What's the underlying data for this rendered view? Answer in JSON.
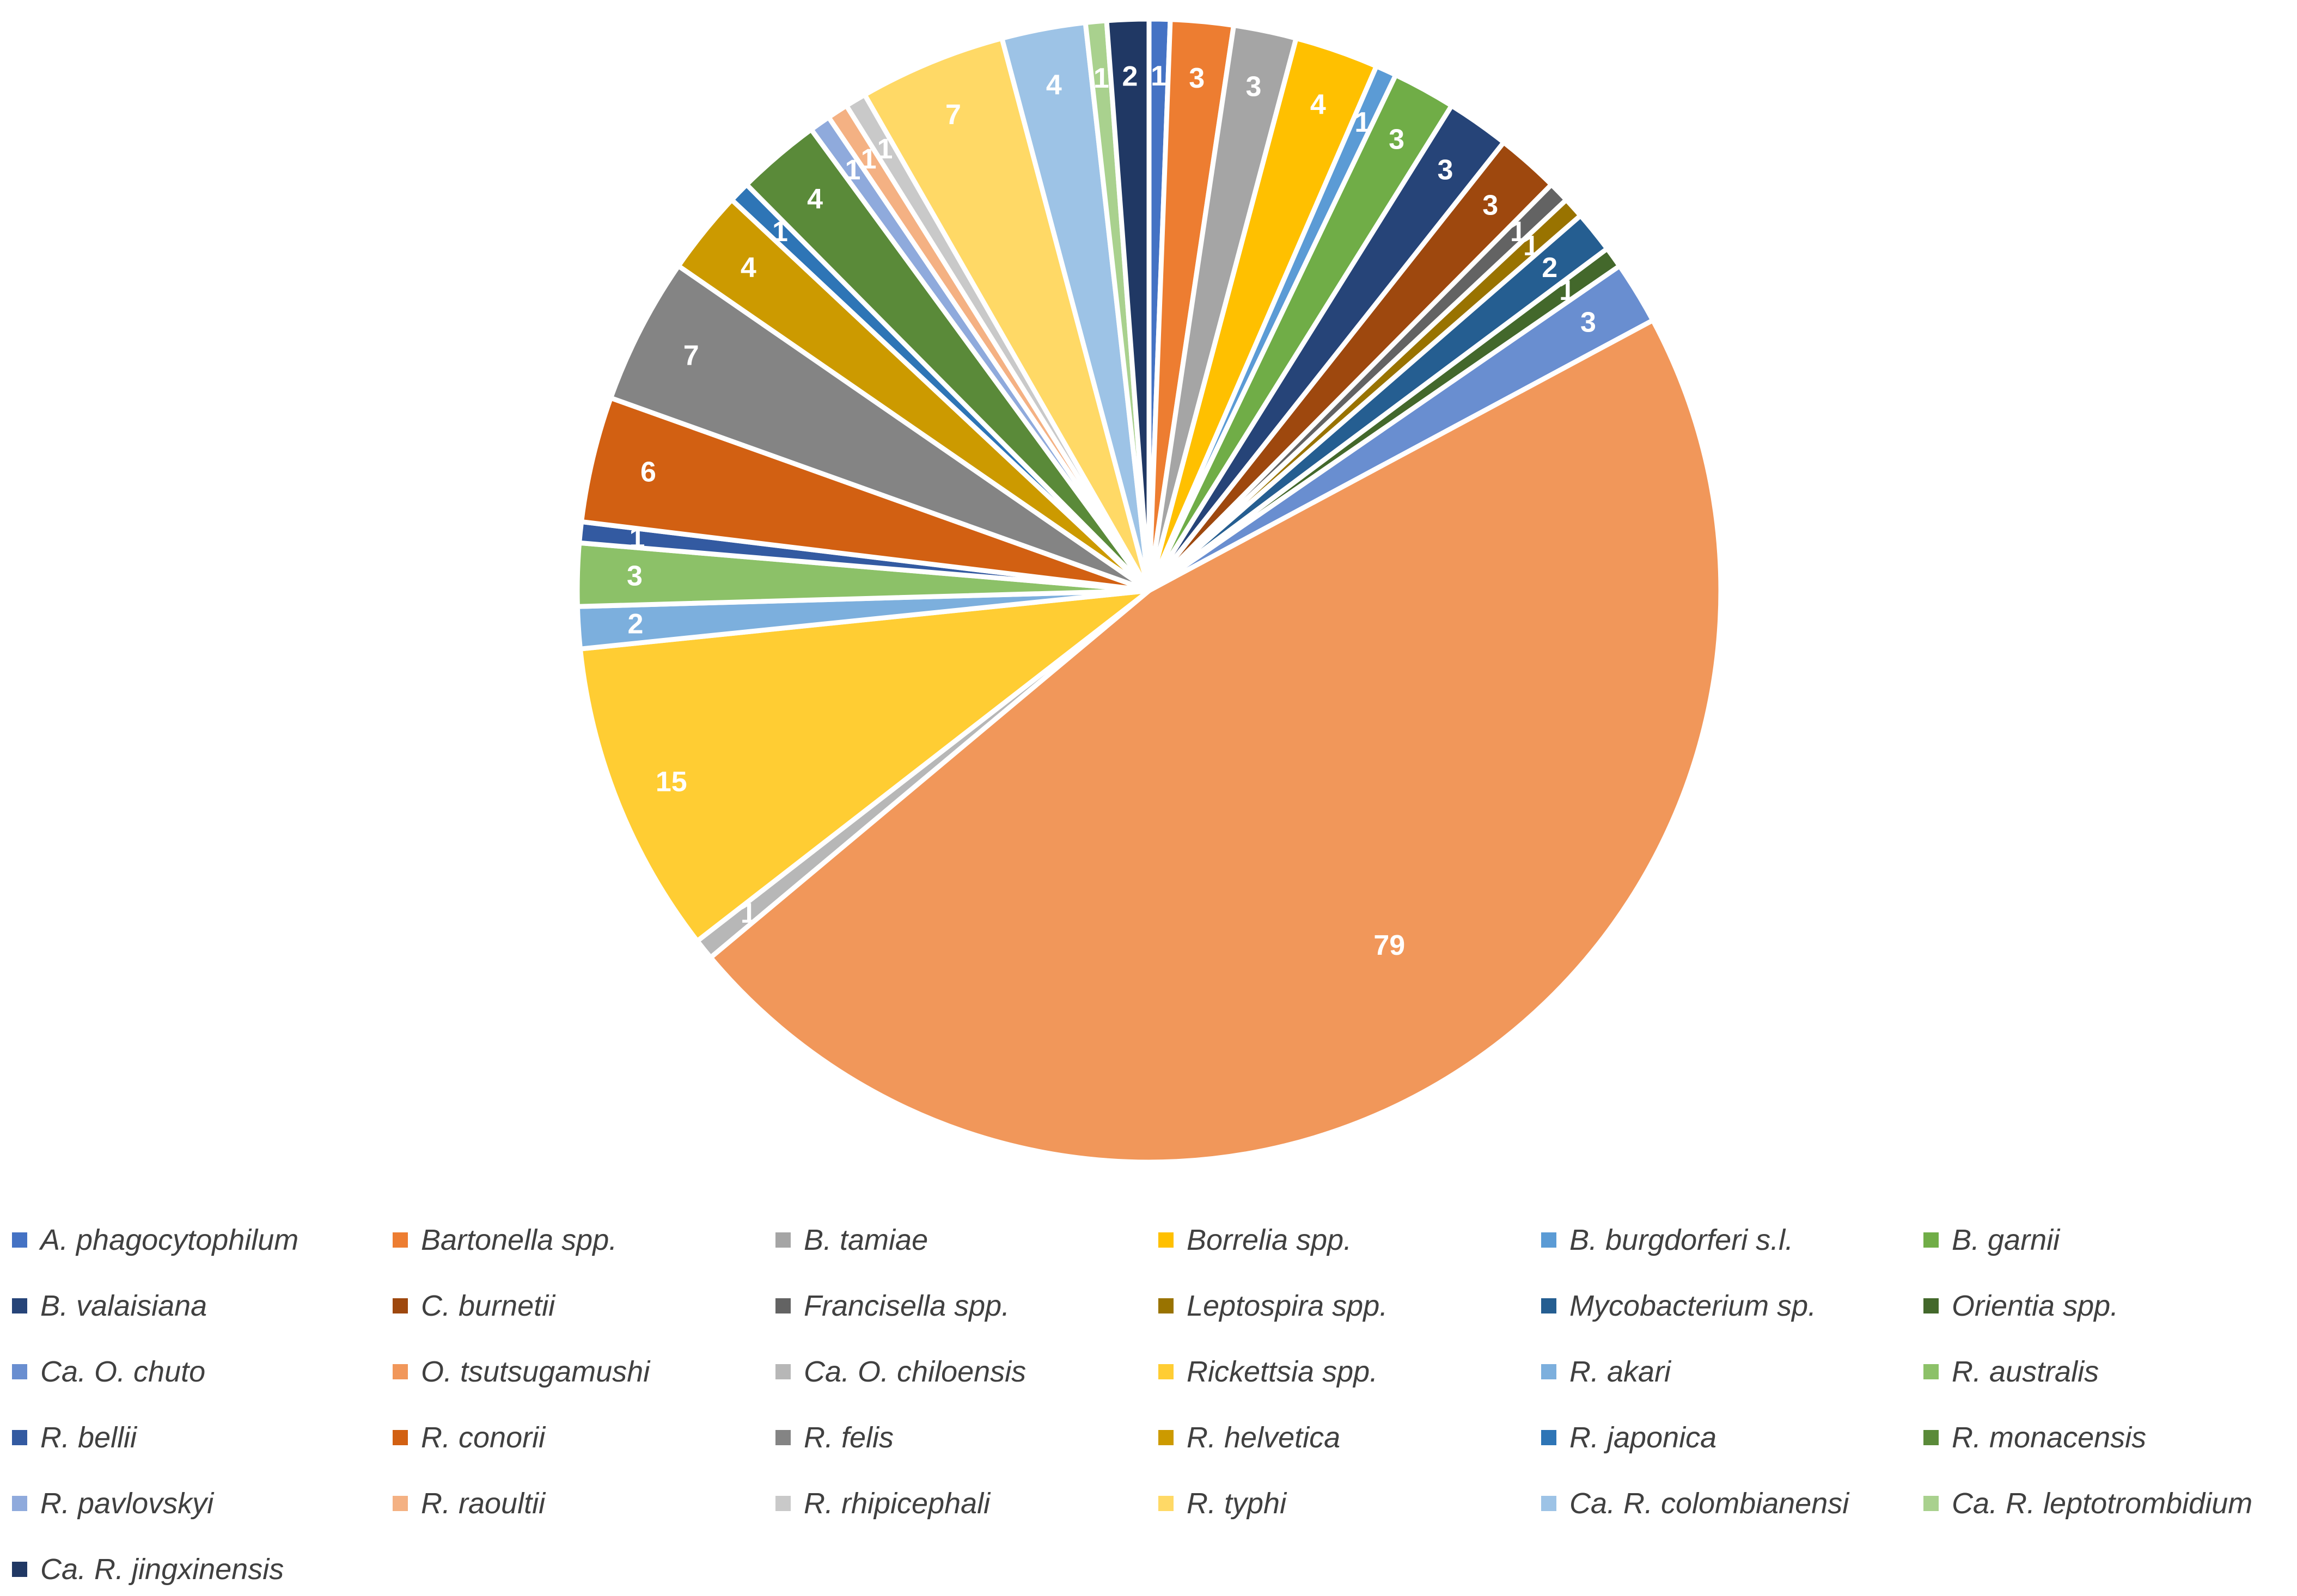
{
  "chart_data": {
    "type": "pie",
    "title": "",
    "start_angle_deg": 0,
    "direction": "clockwise",
    "legend_position": "bottom",
    "slices": [
      {
        "label": "A. phagocytophilum",
        "value": 1,
        "color": "#4472C4"
      },
      {
        "label": "Bartonella spp.",
        "value": 3,
        "color": "#ED7D31"
      },
      {
        "label": "B. tamiae",
        "value": 3,
        "color": "#A5A5A5"
      },
      {
        "label": "Borrelia spp.",
        "value": 4,
        "color": "#FFC000"
      },
      {
        "label": "B. burgdorferi s.l.",
        "value": 1,
        "color": "#5B9BD5"
      },
      {
        "label": "B. garnii",
        "value": 3,
        "color": "#70AD47"
      },
      {
        "label": "B. valaisiana",
        "value": 3,
        "color": "#264478"
      },
      {
        "label": "C. burnetii",
        "value": 3,
        "color": "#9E480E"
      },
      {
        "label": "Francisella spp.",
        "value": 1,
        "color": "#636363"
      },
      {
        "label": "Leptospira spp.",
        "value": 1,
        "color": "#997300"
      },
      {
        "label": "Mycobacterium sp.",
        "value": 2,
        "color": "#255E91"
      },
      {
        "label": "Orientia spp.",
        "value": 1,
        "color": "#43682B"
      },
      {
        "label": "Ca. O. chuto",
        "value": 3,
        "color": "#698ED0"
      },
      {
        "label": "O. tsutsugamushi",
        "value": 79,
        "color": "#F1975A"
      },
      {
        "label": "Ca. O. chiloensis",
        "value": 1,
        "color": "#B7B7B7"
      },
      {
        "label": "Rickettsia spp.",
        "value": 15,
        "color": "#FFCD33"
      },
      {
        "label": "R. akari",
        "value": 2,
        "color": "#7CAFDD"
      },
      {
        "label": "R. australis",
        "value": 3,
        "color": "#8CC168"
      },
      {
        "label": "R. bellii",
        "value": 1,
        "color": "#335AA1"
      },
      {
        "label": "R. conorii",
        "value": 6,
        "color": "#D26012"
      },
      {
        "label": "R. felis",
        "value": 7,
        "color": "#848484"
      },
      {
        "label": "R. helvetica",
        "value": 4,
        "color": "#CC9A00"
      },
      {
        "label": "R. japonica",
        "value": 1,
        "color": "#2E75B6"
      },
      {
        "label": "R. monacensis",
        "value": 4,
        "color": "#5A8A39"
      },
      {
        "label": "R. pavlovskyi",
        "value": 1,
        "color": "#8FAADC"
      },
      {
        "label": "R. raoultii",
        "value": 1,
        "color": "#F4B183"
      },
      {
        "label": "R. rhipicephali",
        "value": 1,
        "color": "#C9C9C9"
      },
      {
        "label": "R. typhi",
        "value": 7,
        "color": "#FFD966"
      },
      {
        "label": "Ca. R. colombianensi",
        "value": 4,
        "color": "#9DC3E6"
      },
      {
        "label": "Ca. R. leptotrombidium",
        "value": 1,
        "color": "#A9D18E"
      },
      {
        "label": "Ca. R. jingxinensis",
        "value": 2,
        "color": "#203864"
      }
    ]
  }
}
